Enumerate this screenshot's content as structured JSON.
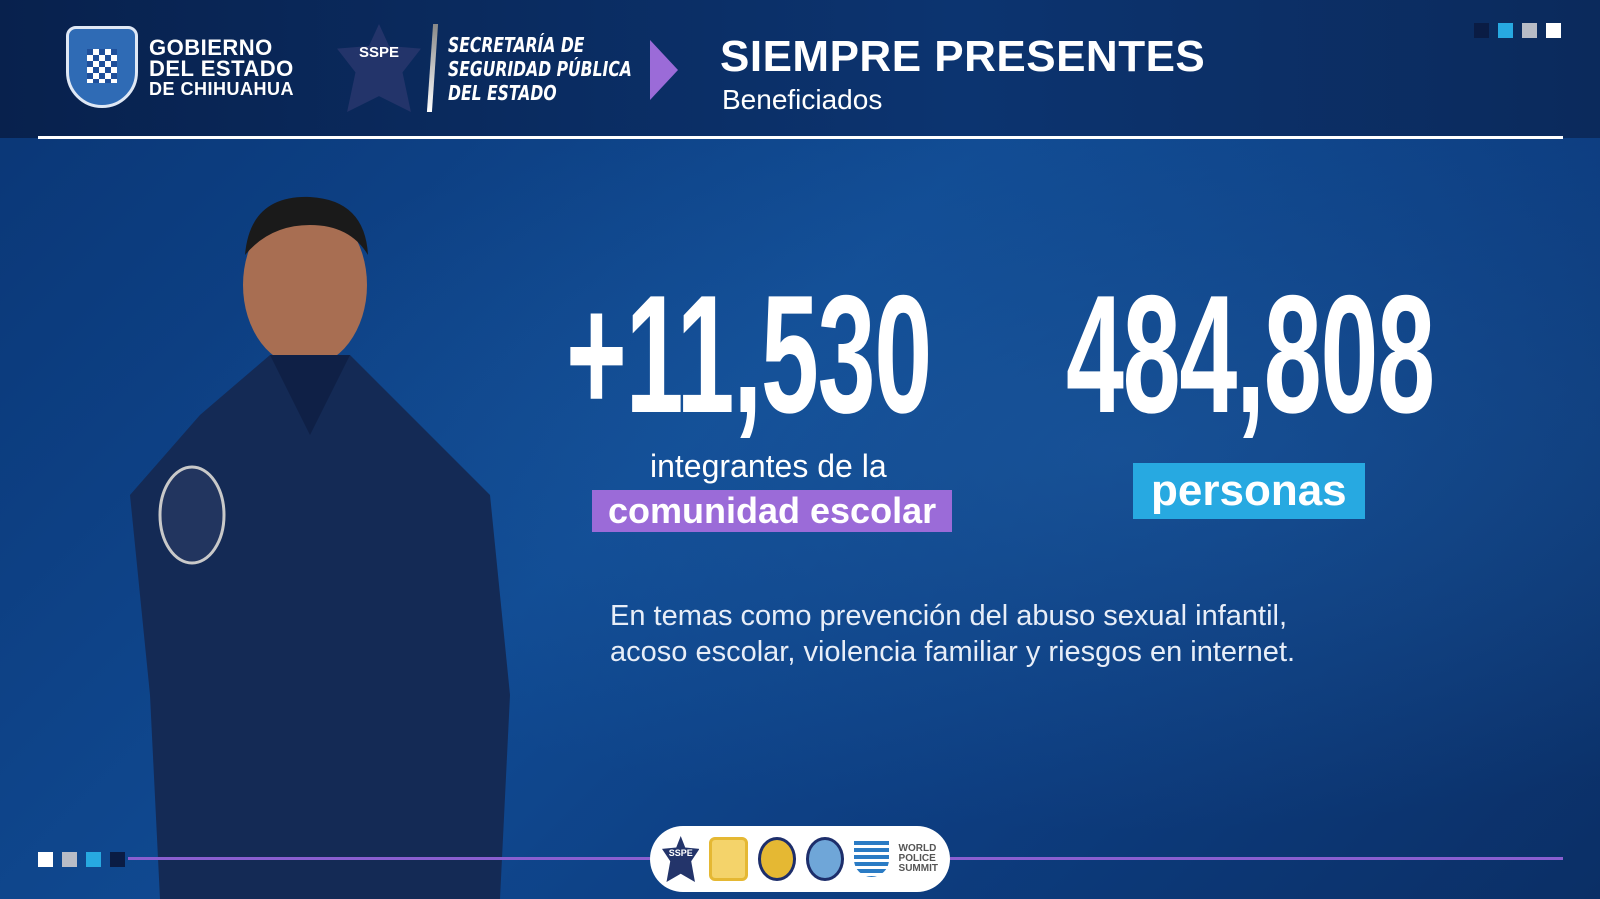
{
  "header": {
    "gov_lines": [
      "GOBIERNO",
      "DEL ESTADO",
      "DE CHIHUAHUA"
    ],
    "sspe_badge": "SSPE",
    "secretaria_lines": [
      "SECRETARÍA DE",
      "SEGURIDAD PÚBLICA",
      "DEL ESTADO"
    ],
    "title": "SIEMPRE PRESENTES",
    "subtitle": "Beneficiados"
  },
  "stats": [
    {
      "value": "+11,530",
      "label": "integrantes de la",
      "highlight": "comunidad escolar",
      "highlight_color": "#9b6bd8"
    },
    {
      "value": "484,808",
      "highlight": "personas",
      "highlight_color": "#27a9e1"
    }
  ],
  "description": [
    "En temas como prevención del abuso sexual infantil,",
    "acoso escolar, violencia familiar y riesgos en internet."
  ],
  "footer": {
    "logos": [
      "SSPE",
      "CALEA",
      "CALEA",
      "CALEA"
    ],
    "wps_lines": [
      "WORLD",
      "POLICE",
      "SUMMIT"
    ]
  },
  "colors": {
    "purple": "#9b6bd8",
    "cyan": "#27a9e1",
    "navy": "#0c3f82"
  }
}
